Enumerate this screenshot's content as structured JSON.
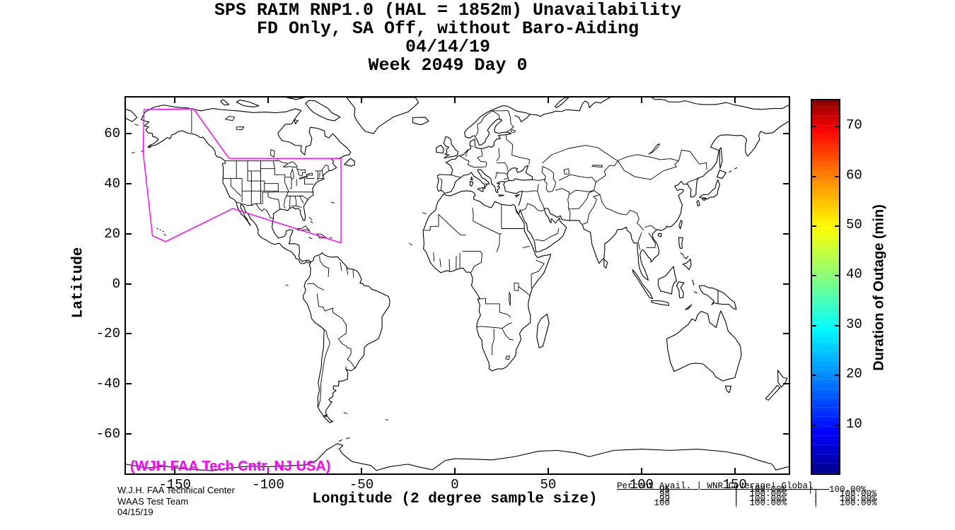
{
  "title": {
    "line1": "SPS RAIM RNP1.0 (HAL = 1852m) Unavailability",
    "line2": "FD Only, SA Off, without Baro-Aiding",
    "line3": "04/14/19",
    "line4": "Week 2049 Day 0"
  },
  "axes": {
    "xlabel": "Longitude (2 degree sample size)",
    "ylabel": "Latitude",
    "xticks": [
      -150,
      -100,
      -50,
      0,
      50,
      100,
      150
    ],
    "yticks": [
      60,
      40,
      20,
      0,
      -20,
      -40,
      -60
    ],
    "xlim": [
      -176.2,
      178.9
    ],
    "ylim": [
      -75.7,
      74.3
    ]
  },
  "colorbar": {
    "label": "Duration of Outage (min)",
    "ticks": [
      10,
      20,
      30,
      40,
      50,
      60,
      70
    ],
    "min": 0,
    "max": 75,
    "colormap": "jet",
    "stops": [
      [
        "#00008B",
        0
      ],
      [
        "#0000FF",
        0.11
      ],
      [
        "#00FFFF",
        0.39
      ],
      [
        "#80FF80",
        0.52
      ],
      [
        "#FFFF00",
        0.66
      ],
      [
        "#FF7F00",
        0.8
      ],
      [
        "#FF0000",
        0.92
      ],
      [
        "#8B0000",
        1
      ]
    ]
  },
  "annotations": {
    "coverage_label": "(WJH FAA Tech Cntr, NJ USA)",
    "accent_color": "#FF00FF"
  },
  "stamp": {
    "line1": "W.J.H. FAA Technical Center",
    "line2": "WAAS Test Team",
    "line3": "04/15/19"
  },
  "stats_table": {
    "header": "Percent_Avail._|_WNR_Coverage|_Global___",
    "rows": [
      "        95            |  100.00%    |   100.00%",
      "        98            |  100.00%     |    100.00%",
      "        99            |  100.00%     |    100.00%",
      "       100            |  100.00%     |    100.00%"
    ]
  },
  "chart_data": {
    "type": "heatmap",
    "title": [
      "SPS RAIM RNP1.0 (HAL = 1852m) Unavailability",
      "FD Only, SA Off, without Baro-Aiding",
      "04/14/19",
      "Week 2049 Day 0"
    ],
    "xlabel": "Longitude (2 degree sample size)",
    "ylabel": "Latitude",
    "xlim": [
      -176.2,
      178.9
    ],
    "ylim": [
      -75.7,
      74.3
    ],
    "xticks": [
      -150,
      -100,
      -50,
      0,
      50,
      100,
      150
    ],
    "yticks": [
      60,
      40,
      20,
      0,
      -20,
      -40,
      -60
    ],
    "grid": false,
    "colorbar": {
      "label": "Duration of Outage (min)",
      "range": [
        0,
        75
      ],
      "ticks": [
        10,
        20,
        30,
        40,
        50,
        60,
        70
      ],
      "colormap": "jet"
    },
    "outage_points": [],
    "coverage_polygon_lonlat": [
      [
        -166.5,
        69.5
      ],
      [
        -140,
        69.8
      ],
      [
        -121,
        50
      ],
      [
        -61,
        50
      ],
      [
        -61,
        16.3
      ],
      [
        -119,
        30
      ],
      [
        -155,
        16.8
      ],
      [
        -162,
        19.2
      ],
      [
        -167,
        52.5
      ]
    ],
    "availability_table": {
      "columns": [
        "Percent Avail.",
        "WNR Coverage",
        "Global"
      ],
      "rows": [
        [
          "95",
          "100.00%",
          "100.00%"
        ],
        [
          "98",
          "100.00%",
          "100.00%"
        ],
        [
          "99",
          "100.00%",
          "100.00%"
        ],
        [
          "100",
          "100.00%",
          "100.00%"
        ]
      ]
    }
  }
}
